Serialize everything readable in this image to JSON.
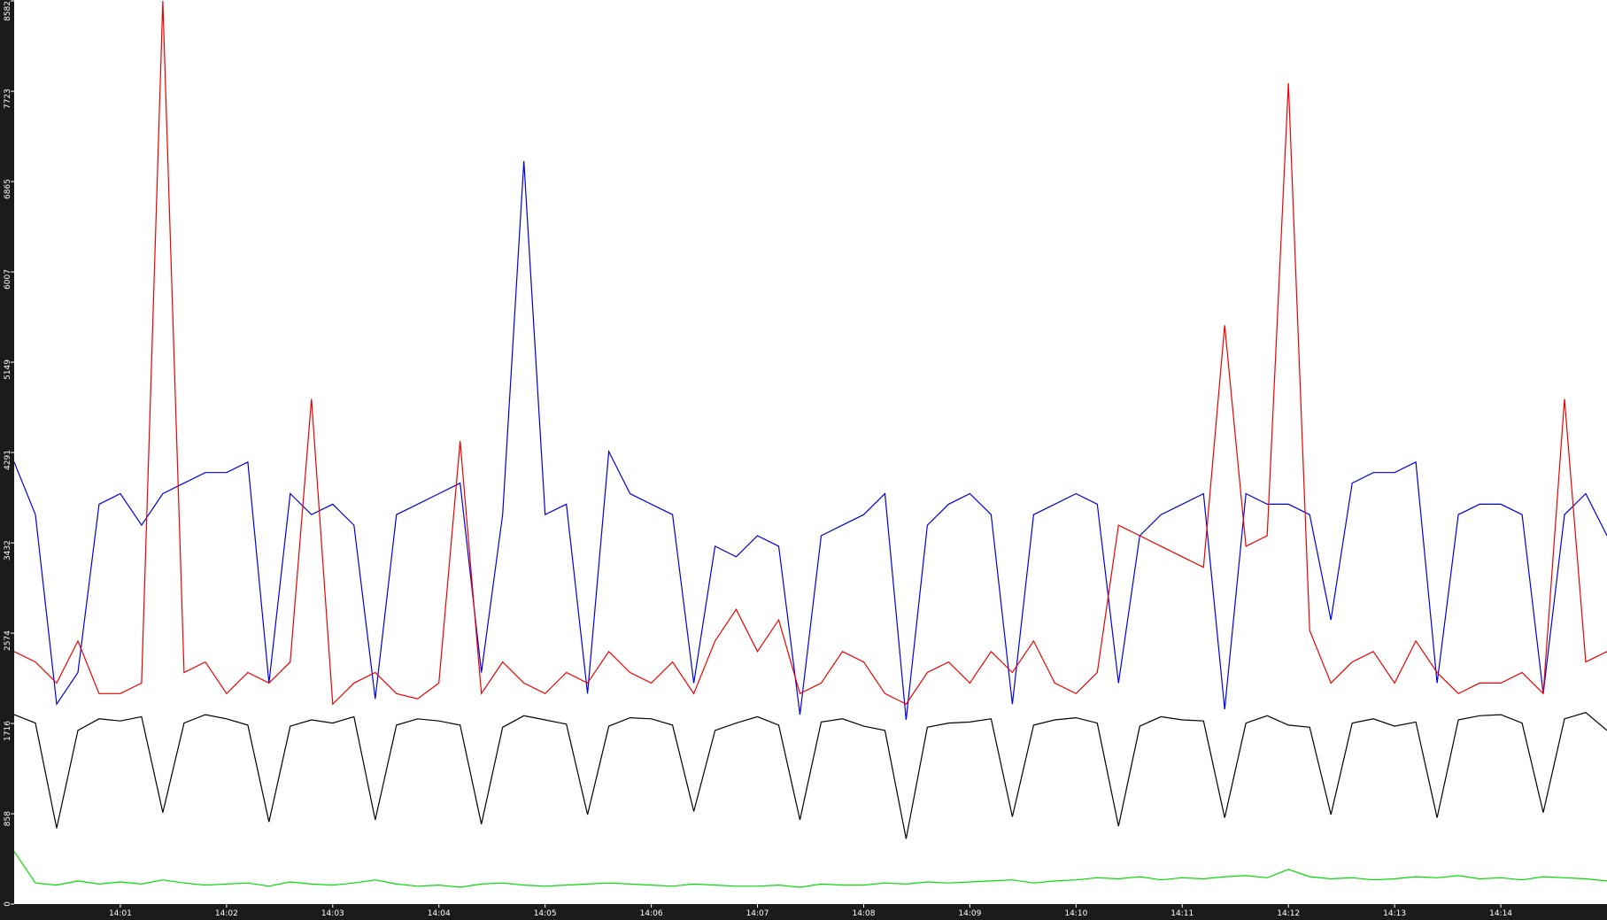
{
  "chart_data": {
    "type": "line",
    "x": [
      0,
      0.2,
      0.4,
      0.6,
      0.8,
      1,
      1.2,
      1.4,
      1.6,
      1.8,
      2,
      2.2,
      2.4,
      2.6,
      2.8,
      3,
      3.2,
      3.4,
      3.6,
      3.8,
      4,
      4.2,
      4.4,
      4.6,
      4.8,
      5,
      5.2,
      5.4,
      5.6,
      5.8,
      6,
      6.2,
      6.4,
      6.6,
      6.8,
      7,
      7.2,
      7.4,
      7.6,
      7.8,
      8,
      8.2,
      8.4,
      8.6,
      8.8,
      9,
      9.2,
      9.4,
      9.6,
      9.8,
      10,
      10.2,
      10.4,
      10.6,
      10.8,
      11,
      11.2,
      11.4,
      11.6,
      11.8,
      12,
      12.2,
      12.4,
      12.6,
      12.8,
      13,
      13.2,
      13.4,
      13.6,
      13.8,
      14,
      14.2,
      14.4,
      14.6,
      14.8,
      15
    ],
    "series": [
      {
        "color": "#0000dd",
        "values": [
          4200,
          3700,
          1900,
          2200,
          3800,
          3900,
          3600,
          3900,
          4000,
          4100,
          4100,
          4200,
          2100,
          3900,
          3700,
          3800,
          3600,
          1950,
          3700,
          3800,
          3900,
          4000,
          2200,
          3700,
          7060,
          3700,
          3800,
          2000,
          4300,
          3900,
          3800,
          3700,
          2100,
          3400,
          3300,
          3500,
          3400,
          1800,
          3500,
          3600,
          3700,
          3900,
          1750,
          3600,
          3800,
          3900,
          3700,
          1900,
          3700,
          3800,
          3900,
          3800,
          2100,
          3500,
          3700,
          3800,
          3900,
          1850,
          3900,
          3800,
          3800,
          3700,
          2700,
          4000,
          4100,
          4100,
          4200,
          2100,
          3700,
          3800,
          3800,
          3700,
          2000,
          3700,
          3900,
          3500
        ]
      },
      {
        "color": "#ee0000",
        "values": [
          2400,
          2300,
          2100,
          2500,
          2000,
          2000,
          2100,
          8582,
          2200,
          2300,
          2000,
          2200,
          2100,
          2300,
          4800,
          1900,
          2100,
          2200,
          2000,
          1950,
          2100,
          4400,
          2000,
          2300,
          2100,
          2000,
          2200,
          2100,
          2400,
          2200,
          2100,
          2300,
          2000,
          2500,
          2800,
          2400,
          2700,
          2000,
          2100,
          2400,
          2300,
          2000,
          1900,
          2200,
          2300,
          2100,
          2400,
          2200,
          2500,
          2100,
          2000,
          2200,
          3600,
          3500,
          3400,
          3300,
          3200,
          5500,
          3400,
          3500,
          7800,
          2600,
          2100,
          2300,
          2400,
          2100,
          2500,
          2200,
          2000,
          2100,
          2100,
          2200,
          2000,
          4800,
          2300,
          2400
        ]
      },
      {
        "color": "#000000",
        "values": [
          1800,
          1720,
          720,
          1650,
          1760,
          1740,
          1780,
          870,
          1720,
          1800,
          1760,
          1700,
          780,
          1690,
          1750,
          1720,
          1780,
          800,
          1700,
          1760,
          1740,
          1700,
          760,
          1680,
          1790,
          1750,
          1710,
          850,
          1690,
          1770,
          1760,
          1700,
          880,
          1650,
          1720,
          1780,
          1700,
          800,
          1730,
          1760,
          1690,
          1650,
          620,
          1680,
          1720,
          1730,
          1760,
          830,
          1700,
          1750,
          1770,
          1720,
          740,
          1690,
          1780,
          1750,
          1740,
          820,
          1720,
          1790,
          1700,
          1680,
          850,
          1720,
          1760,
          1690,
          1730,
          820,
          1750,
          1790,
          1800,
          1720,
          870,
          1760,
          1820,
          1650
        ]
      },
      {
        "color": "#00dd00",
        "values": [
          500,
          200,
          180,
          220,
          190,
          210,
          190,
          230,
          200,
          180,
          190,
          200,
          170,
          210,
          190,
          180,
          200,
          230,
          190,
          170,
          180,
          160,
          190,
          200,
          180,
          170,
          180,
          190,
          200,
          190,
          180,
          170,
          190,
          180,
          170,
          170,
          180,
          160,
          190,
          180,
          180,
          200,
          190,
          210,
          200,
          210,
          220,
          230,
          200,
          220,
          230,
          250,
          240,
          260,
          230,
          250,
          240,
          260,
          270,
          250,
          330,
          260,
          240,
          250,
          230,
          240,
          260,
          250,
          270,
          240,
          250,
          230,
          260,
          250,
          240,
          220
        ]
      }
    ],
    "xlim": [
      0,
      15
    ],
    "xticks": [
      {
        "value": 1,
        "label": "14:01"
      },
      {
        "value": 2,
        "label": "14:02"
      },
      {
        "value": 3,
        "label": "14:03"
      },
      {
        "value": 4,
        "label": "14:04"
      },
      {
        "value": 5,
        "label": "14:05"
      },
      {
        "value": 6,
        "label": "14:06"
      },
      {
        "value": 7,
        "label": "14:07"
      },
      {
        "value": 8,
        "label": "14:08"
      },
      {
        "value": 9,
        "label": "14:09"
      },
      {
        "value": 10,
        "label": "14:10"
      },
      {
        "value": 11,
        "label": "14:11"
      },
      {
        "value": 12,
        "label": "14:12"
      },
      {
        "value": 13,
        "label": "14:13"
      },
      {
        "value": 14,
        "label": "14:14"
      }
    ],
    "ylim": [
      0,
      8582
    ],
    "yticks": [
      0,
      858,
      1716,
      2574,
      3432,
      4291,
      5149,
      6007,
      6865,
      7723,
      8582
    ],
    "grid": false
  }
}
